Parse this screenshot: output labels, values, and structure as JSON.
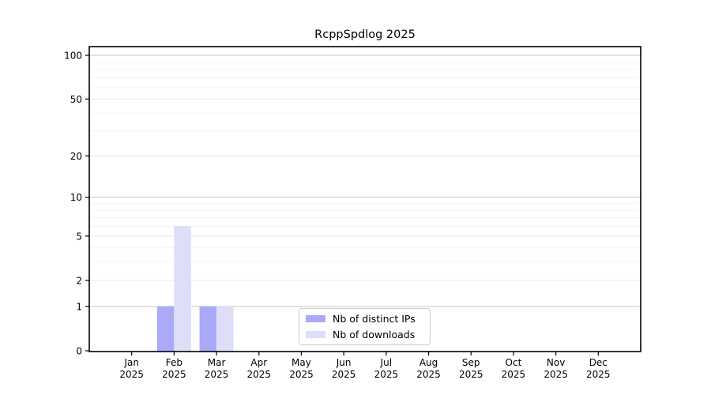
{
  "title": "RcppSpdlog 2025",
  "chart_data": {
    "type": "bar",
    "title": "RcppSpdlog 2025",
    "categories": [
      "Jan",
      "Feb",
      "Mar",
      "Apr",
      "May",
      "Jun",
      "Jul",
      "Aug",
      "Sep",
      "Oct",
      "Nov",
      "Dec"
    ],
    "x_tick_second_line": "2025",
    "series": [
      {
        "name": "Nb of distinct IPs",
        "color": "#aaaaf8",
        "values": [
          0,
          1,
          1,
          0,
          0,
          0,
          0,
          0,
          0,
          0,
          0,
          0
        ]
      },
      {
        "name": "Nb of downloads",
        "color": "#dedef8",
        "values": [
          0,
          6,
          1,
          0,
          0,
          0,
          0,
          0,
          0,
          0,
          0,
          0
        ]
      }
    ],
    "xlabel": "",
    "ylabel": "",
    "y_axis": {
      "scale": "log1p",
      "tick_values": [
        0,
        1,
        2,
        5,
        10,
        20,
        50,
        100
      ],
      "tick_labels": [
        "0",
        "1",
        "2",
        "5",
        "10",
        "20",
        "50",
        "100"
      ],
      "minor_gridlines": [
        3,
        4,
        6,
        7,
        8,
        9,
        30,
        40,
        60,
        70,
        80,
        90
      ],
      "ylim": [
        0,
        115
      ]
    },
    "grid": "on",
    "legend_position": "bottom-center"
  },
  "colors": {
    "bar_distinct_ips": "#aaaaf8",
    "bar_downloads": "#dedef8",
    "grid_power10": "#c6c6c6",
    "grid_major": "#e9e9e9",
    "grid_minor": "#f4f4f4",
    "axis_frame": "#000000",
    "text": "#000000",
    "legend_border": "#cccccc"
  }
}
